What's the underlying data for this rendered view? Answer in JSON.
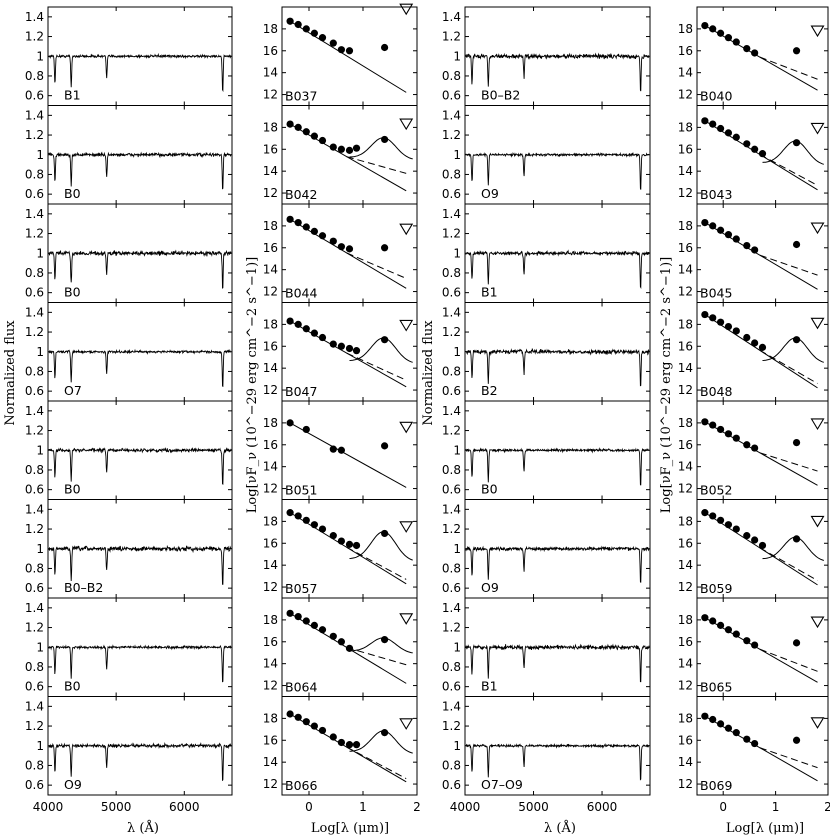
{
  "chart_data": {
    "type": "line",
    "panel_columns": [
      {
        "kind": "spectrum",
        "labels": [
          "B1",
          "B0",
          "B0",
          "O7",
          "B0",
          "B0–B2",
          "B0",
          "O9"
        ]
      },
      {
        "kind": "sed",
        "labels": [
          "B037",
          "B042",
          "B044",
          "B047",
          "B051",
          "B057",
          "B064",
          "B066"
        ]
      },
      {
        "kind": "spectrum",
        "labels": [
          "B0–B2",
          "O9",
          "B1",
          "B2",
          "B0",
          "O9",
          "B1",
          "O7–O9"
        ]
      },
      {
        "kind": "sed",
        "labels": [
          "B040",
          "B043",
          "B045",
          "B048",
          "B052",
          "B059",
          "B065",
          "B069"
        ]
      }
    ],
    "spectrum_axis": {
      "xlim": [
        4000,
        6700
      ],
      "ylim": [
        0.5,
        1.5
      ],
      "xticks": [
        "4000",
        "5000",
        "6000"
      ],
      "yticks": [
        "0.6",
        "0.8",
        "1",
        "1.2",
        "1.4"
      ],
      "absorption_lines_angstrom": [
        4102,
        4340,
        4861,
        6563
      ]
    },
    "sed_axis": {
      "xlim": [
        -0.5,
        2.0
      ],
      "ylim": [
        11,
        20
      ],
      "xticks": [
        "0",
        "1",
        "2"
      ],
      "yticks": [
        "12",
        "14",
        "16",
        "18"
      ]
    },
    "sed_points_x": [
      -0.35,
      -0.2,
      -0.05,
      0.1,
      0.25,
      0.45,
      0.6,
      0.75,
      0.88
    ],
    "sed_far_ir_x": 1.4,
    "sed_upper_limit_x": 1.8,
    "sed_panels": {
      "B037": {
        "y": [
          18.7,
          18.4,
          18.0,
          17.6,
          17.2,
          16.7,
          16.1,
          16.0
        ],
        "far": 16.3,
        "uplim": 19.8,
        "end": [
          12.2,
          12.2
        ],
        "hump": null
      },
      "B042": {
        "y": [
          18.3,
          18.0,
          17.6,
          17.2,
          16.8,
          16.2,
          16.0,
          15.9,
          16.1
        ],
        "far": 16.9,
        "uplim": 18.3,
        "end": [
          12.2,
          13.8
        ],
        "hump": 15.0
      },
      "B044": {
        "y": [
          18.6,
          18.3,
          17.9,
          17.5,
          17.1,
          16.6,
          16.1,
          15.9
        ],
        "far": 16.0,
        "uplim": 17.7,
        "end": [
          12.3,
          13.2
        ],
        "hump": null
      },
      "B047": {
        "y": [
          18.3,
          18.0,
          17.6,
          17.2,
          16.8,
          16.2,
          16.0,
          15.8,
          15.6
        ],
        "far": 16.6,
        "uplim": 17.9,
        "end": [
          12.3,
          12.9
        ],
        "hump": 14.4
      },
      "B051": {
        "y": [
          18.0,
          null,
          17.4,
          null,
          null,
          15.6,
          15.5
        ],
        "far": 15.9,
        "uplim": 17.6,
        "end": [
          12.1,
          12.1
        ],
        "hump": null
      },
      "B057": {
        "y": [
          18.8,
          18.5,
          18.1,
          17.7,
          17.3,
          16.7,
          16.2,
          15.9,
          15.8
        ],
        "far": 16.9,
        "uplim": 17.5,
        "end": [
          12.3,
          12.7
        ],
        "hump": 14.3
      },
      "B064": {
        "y": [
          18.6,
          18.3,
          17.9,
          17.5,
          17.1,
          16.5,
          16.0,
          15.4
        ],
        "far": 16.2,
        "uplim": 18.1,
        "end": [
          12.2,
          13.9
        ],
        "hump": 14.9
      },
      "B066": {
        "y": [
          18.4,
          18.1,
          17.7,
          17.3,
          16.9,
          16.3,
          15.8,
          15.6,
          15.6
        ],
        "far": 16.7,
        "uplim": 17.5,
        "end": [
          12.2,
          12.5
        ],
        "hump": 14.7
      },
      "B040": {
        "y": [
          18.3,
          18.0,
          17.6,
          17.2,
          16.8,
          16.2,
          15.8
        ],
        "far": 16.0,
        "uplim": 17.8,
        "end": [
          12.4,
          13.4
        ],
        "hump": null
      },
      "B043": {
        "y": [
          18.6,
          18.3,
          17.9,
          17.5,
          17.1,
          16.5,
          16.0,
          15.6
        ],
        "far": 16.6,
        "uplim": 17.9,
        "end": [
          12.3,
          12.7
        ],
        "hump": 14.5
      },
      "B045": {
        "y": [
          18.3,
          18.0,
          17.6,
          17.2,
          16.8,
          16.2,
          15.8
        ],
        "far": 16.3,
        "uplim": 17.8,
        "end": [
          12.2,
          13.5
        ],
        "hump": null
      },
      "B048": {
        "y": [
          18.9,
          18.6,
          18.2,
          17.8,
          17.4,
          16.8,
          16.3,
          15.9
        ],
        "far": 16.6,
        "uplim": 18.1,
        "end": [
          12.2,
          12.6
        ],
        "hump": 14.4
      },
      "B052": {
        "y": [
          18.1,
          17.8,
          17.4,
          17.0,
          16.6,
          16.0,
          15.7
        ],
        "far": 16.2,
        "uplim": 17.9,
        "end": [
          12.3,
          13.6
        ],
        "hump": null
      },
      "B059": {
        "y": [
          18.8,
          18.5,
          18.1,
          17.7,
          17.3,
          16.7,
          16.3,
          15.8
        ],
        "far": 16.4,
        "uplim": 18.0,
        "end": [
          12.2,
          12.6
        ],
        "hump": 14.3
      },
      "B065": {
        "y": [
          18.2,
          17.9,
          17.5,
          17.1,
          16.7,
          16.1,
          15.7
        ],
        "far": 15.9,
        "uplim": 17.8,
        "end": [
          12.3,
          13.3
        ],
        "hump": null
      },
      "B069": {
        "y": [
          18.2,
          17.9,
          17.5,
          17.1,
          16.7,
          16.1,
          15.7
        ],
        "far": 16.0,
        "uplim": 17.6,
        "end": [
          12.3,
          13.5
        ],
        "hump": null
      }
    },
    "xlabel_spectrum": "λ (Å)",
    "xlabel_sed": "Log[λ (μm)]",
    "ylabel_spectrum": "Normalized flux",
    "ylabel_sed": "Log[νF_ν (10^−29 erg cm^−2 s^−1)]",
    "grid": false
  }
}
